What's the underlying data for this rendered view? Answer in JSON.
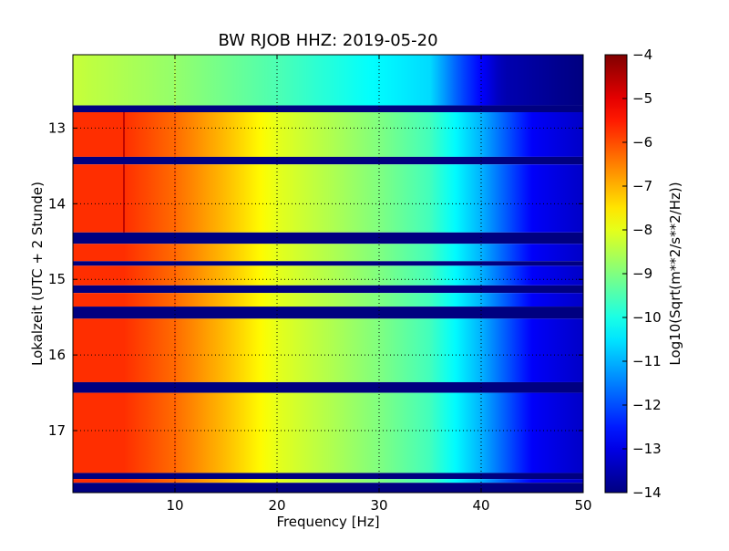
{
  "chart_data": {
    "type": "heatmap",
    "title": "BW RJOB HHZ: 2019-05-20",
    "xlabel": "Frequency [Hz]",
    "ylabel": "Lokalzeit (UTC + 2 Stunde)",
    "colorbar_label": "Log10(Sqrt(m**2/s**2/Hz))",
    "xlim": [
      0,
      50
    ],
    "ylim": [
      17.82,
      12.03
    ],
    "x_ticks": [
      10,
      20,
      30,
      40,
      50
    ],
    "y_ticks": [
      13,
      14,
      15,
      16,
      17
    ],
    "colorbar_range": [
      -14,
      -4
    ],
    "colorbar_ticks": [
      -4,
      -5,
      -6,
      -7,
      -8,
      -9,
      -10,
      -11,
      -12,
      -13,
      -14
    ],
    "colormap": "jet",
    "grid": true,
    "gap_value": -14,
    "spectrum_profile": [
      {
        "freq": 0,
        "value": -5.7
      },
      {
        "freq": 5,
        "value": -5.7
      },
      {
        "freq": 10,
        "value": -6.3
      },
      {
        "freq": 15,
        "value": -7.1
      },
      {
        "freq": 20,
        "value": -8.0
      },
      {
        "freq": 25,
        "value": -8.5
      },
      {
        "freq": 30,
        "value": -9.0
      },
      {
        "freq": 35,
        "value": -9.6
      },
      {
        "freq": 40,
        "value": -11.0
      },
      {
        "freq": 45,
        "value": -12.8
      },
      {
        "freq": 50,
        "value": -13.3
      }
    ],
    "quiet_spectrum_profile": [
      {
        "freq": 0,
        "value": -8.3
      },
      {
        "freq": 10,
        "value": -8.8
      },
      {
        "freq": 20,
        "value": -9.5
      },
      {
        "freq": 30,
        "value": -10.3
      },
      {
        "freq": 35,
        "value": -10.6
      },
      {
        "freq": 38,
        "value": -12.0
      },
      {
        "freq": 42,
        "value": -13.5
      },
      {
        "freq": 50,
        "value": -14.0
      }
    ],
    "time_segments": [
      {
        "start": 12.03,
        "end": 12.7,
        "kind": "quiet"
      },
      {
        "start": 12.7,
        "end": 12.79,
        "kind": "gap"
      },
      {
        "start": 12.79,
        "end": 13.38,
        "kind": "data"
      },
      {
        "start": 13.38,
        "end": 13.48,
        "kind": "gap"
      },
      {
        "start": 13.48,
        "end": 14.38,
        "kind": "data"
      },
      {
        "start": 14.38,
        "end": 14.53,
        "kind": "gap"
      },
      {
        "start": 14.53,
        "end": 14.76,
        "kind": "data"
      },
      {
        "start": 14.76,
        "end": 14.82,
        "kind": "gap"
      },
      {
        "start": 14.82,
        "end": 15.08,
        "kind": "data"
      },
      {
        "start": 15.08,
        "end": 15.18,
        "kind": "gap"
      },
      {
        "start": 15.18,
        "end": 15.36,
        "kind": "data"
      },
      {
        "start": 15.36,
        "end": 15.52,
        "kind": "gap"
      },
      {
        "start": 15.52,
        "end": 16.36,
        "kind": "data"
      },
      {
        "start": 16.36,
        "end": 16.5,
        "kind": "gap"
      },
      {
        "start": 16.5,
        "end": 17.56,
        "kind": "data"
      },
      {
        "start": 17.56,
        "end": 17.64,
        "kind": "gap"
      },
      {
        "start": 17.64,
        "end": 17.69,
        "kind": "data"
      },
      {
        "start": 17.69,
        "end": 17.82,
        "kind": "gap"
      }
    ],
    "spectral_lines": [
      {
        "freq": 5.0,
        "offset": 1.2,
        "start": 12.79,
        "end": 14.38
      },
      {
        "freq": 10.0,
        "offset": 0.25,
        "start": 12.03,
        "end": 17.82
      }
    ]
  }
}
